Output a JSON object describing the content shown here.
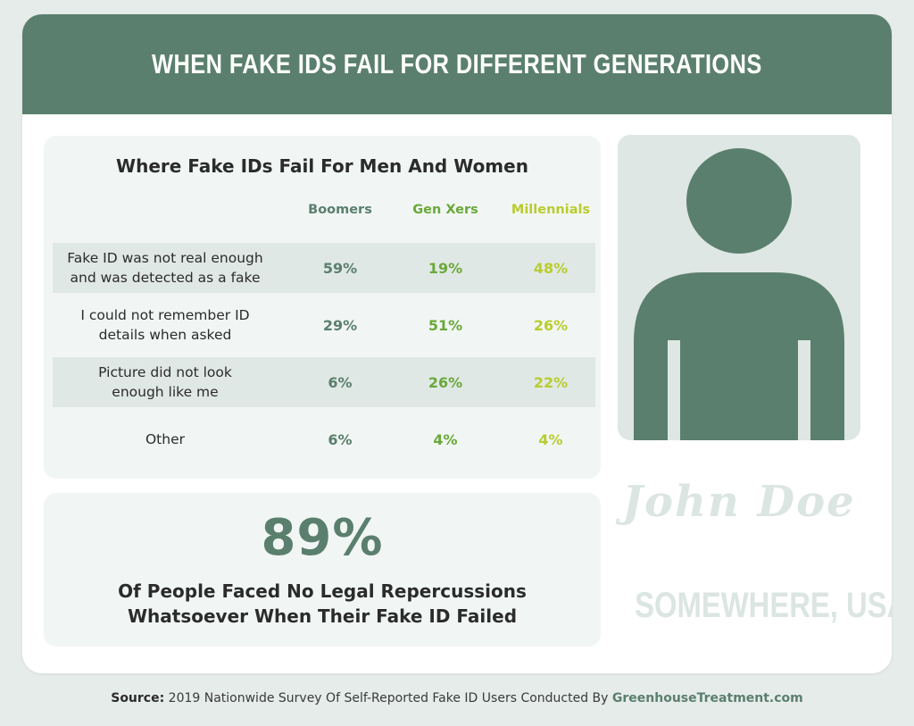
{
  "header": {
    "title": "WHEN FAKE IDS FAIL FOR DIFFERENT GENERATIONS"
  },
  "colors": {
    "boomers": "#5b7f6e",
    "gen_xers": "#6aa83a",
    "millennials": "#b9cc2e",
    "header_bg": "#5b7f6e"
  },
  "chart_data": {
    "type": "table",
    "title": "Where Fake IDs Fail For Men And Women",
    "columns": [
      "Boomers",
      "Gen Xers",
      "Millennials"
    ],
    "rows": [
      {
        "label_lines": [
          "Fake ID was not real enough",
          "and was detected as a fake"
        ],
        "values": [
          "59%",
          "19%",
          "48%"
        ]
      },
      {
        "label_lines": [
          "I could not remember ID",
          "details when asked"
        ],
        "values": [
          "29%",
          "51%",
          "26%"
        ]
      },
      {
        "label_lines": [
          "Picture did not look",
          "enough like me"
        ],
        "values": [
          "6%",
          "26%",
          "22%"
        ]
      },
      {
        "label_lines": [
          "Other"
        ],
        "values": [
          "6%",
          "4%",
          "4%"
        ]
      }
    ]
  },
  "stat": {
    "value": "89%",
    "caption_line1": "Of People Faced No Legal Repercussions",
    "caption_line2": "Whatsoever When Their Fake ID Failed"
  },
  "id_card": {
    "name": "John Doe",
    "location": "SOMEWHERE, USA",
    "photo_icon": "person-silhouette-icon"
  },
  "source": {
    "label": "Source:",
    "text": "2019 Nationwide Survey Of Self-Reported Fake ID Users Conducted By",
    "site": "GreenhouseTreatment.com"
  }
}
